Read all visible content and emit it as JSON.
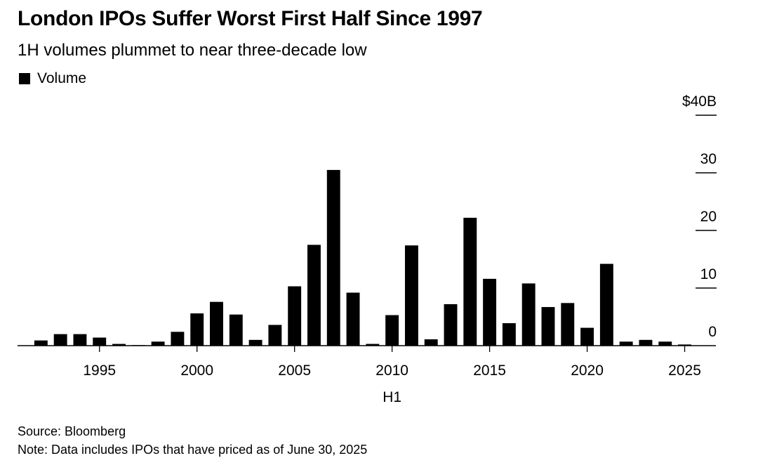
{
  "chart_data": {
    "type": "bar",
    "title": "London IPOs Suffer Worst First Half Since 1997",
    "subtitle": "1H volumes plummet to near three-decade low",
    "legend": [
      {
        "name": "Volume",
        "color": "#000000"
      }
    ],
    "legend_position": "top-left",
    "xlabel": "H1",
    "ylabel": "",
    "y_axis_side": "right",
    "ylim": [
      0,
      40
    ],
    "yticks": [
      {
        "value": 0,
        "label": "0"
      },
      {
        "value": 10,
        "label": "10"
      },
      {
        "value": 20,
        "label": "20"
      },
      {
        "value": 30,
        "label": "30"
      },
      {
        "value": 40,
        "label": "$40B"
      }
    ],
    "xticks": [
      1995,
      2000,
      2005,
      2010,
      2015,
      2020,
      2025
    ],
    "xlim": [
      1990.8,
      2026.6
    ],
    "grid": false,
    "x": [
      1992,
      1993,
      1994,
      1995,
      1996,
      1997,
      1998,
      1999,
      2000,
      2001,
      2002,
      2003,
      2004,
      2005,
      2006,
      2007,
      2008,
      2009,
      2010,
      2011,
      2012,
      2013,
      2014,
      2015,
      2016,
      2017,
      2018,
      2019,
      2020,
      2021,
      2022,
      2023,
      2024,
      2025
    ],
    "values": [
      0.9,
      2.0,
      2.0,
      1.4,
      0.3,
      0.1,
      0.7,
      2.4,
      5.6,
      7.6,
      5.4,
      1.0,
      3.6,
      10.3,
      17.5,
      30.5,
      9.2,
      0.3,
      5.3,
      17.4,
      1.1,
      7.2,
      22.2,
      11.6,
      3.9,
      10.8,
      6.7,
      7.4,
      3.1,
      14.2,
      0.7,
      1.0,
      0.7,
      0.2
    ]
  },
  "footer": {
    "source": "Source: Bloomberg",
    "note": "Note: Data includes IPOs that have priced as of June 30, 2025"
  }
}
